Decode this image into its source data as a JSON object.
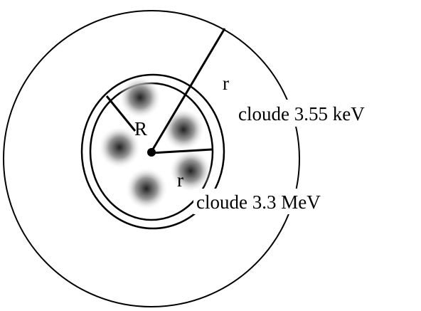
{
  "labels": {
    "outer_radius": "r",
    "core_radius": "R",
    "inner_radius": "r",
    "outer_cloud": "cloude 3.55 keV",
    "inner_cloud": "cloude 3.3 MeV"
  }
}
